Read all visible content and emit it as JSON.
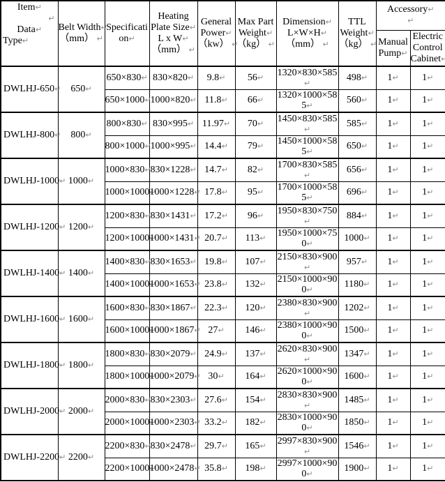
{
  "marks": {
    "line_break": "↵"
  },
  "header": {
    "corner": {
      "lines": [
        {
          "text": "Item",
          "mark": true,
          "align": "c"
        },
        {
          "text": "",
          "mark": true,
          "align": "r"
        },
        {
          "text": "Data",
          "mark": true,
          "align": "c"
        },
        {
          "text": "Type",
          "mark": true,
          "align": "l"
        }
      ]
    },
    "columns": [
      {
        "name": "belt-width",
        "lines": [
          {
            "text": "Belt Width",
            "mark": true
          },
          {
            "text": "（mm） ",
            "mark": true
          }
        ]
      },
      {
        "name": "specification",
        "lines": [
          {
            "text": "Specificati"
          },
          {
            "text": "on",
            "mark": true
          }
        ]
      },
      {
        "name": "heating-plate-size",
        "lines": [
          {
            "text": "Heating"
          },
          {
            "text": "Plate Size",
            "mark": true
          },
          {
            "text": "L x W",
            "mark": true
          },
          {
            "text": "（mm） ",
            "mark": true
          }
        ]
      },
      {
        "name": "general-power",
        "lines": [
          {
            "text": "General"
          },
          {
            "text": "Power",
            "mark": true
          },
          {
            "text": "（kw） ",
            "mark": true
          }
        ]
      },
      {
        "name": "max-part-weight",
        "lines": [
          {
            "text": "Max Part"
          },
          {
            "text": "Weight",
            "mark": true
          },
          {
            "text": "（kg） ",
            "mark": true
          }
        ]
      },
      {
        "name": "dimension",
        "lines": [
          {
            "text": "Dimension",
            "mark": true
          },
          {
            "text": "L×W×H",
            "mark": true
          },
          {
            "text": "（mm） ",
            "mark": true
          }
        ]
      },
      {
        "name": "ttl-weight",
        "lines": [
          {
            "text": "TTL"
          },
          {
            "text": "Weight",
            "mark": true
          },
          {
            "text": "（kg） ",
            "mark": true
          }
        ]
      }
    ],
    "accessory": {
      "lines": [
        {
          "text": "Accessory",
          "mark": true
        },
        {
          "text": "",
          "mark": true,
          "align": "c"
        }
      ]
    },
    "accessory_sub": [
      {
        "name": "manual-pump",
        "lines": [
          {
            "text": "Manual"
          },
          {
            "text": "Pump",
            "mark": true
          }
        ]
      },
      {
        "name": "electric-control-cabinet",
        "lines": [
          {
            "text": "Electric"
          },
          {
            "text": "Control"
          },
          {
            "text": "Cabinet",
            "mark": true
          }
        ]
      }
    ]
  },
  "groups": [
    {
      "model": "DWLHJ-650",
      "belt_width": "650",
      "variants": [
        {
          "spec": "650×830",
          "plate": "830×820",
          "power": "9.8",
          "max_weight": "56",
          "dimension": "1320×830×585",
          "ttl": "498",
          "manual_pump": "1",
          "electric_cabinet": "1"
        },
        {
          "spec": "650×1000",
          "plate": "1000×820",
          "power": "11.8",
          "max_weight": "66",
          "dimension": "1320×1000×585",
          "ttl": "560",
          "manual_pump": "1",
          "electric_cabinet": "1"
        }
      ]
    },
    {
      "model": "DWLHJ-800",
      "belt_width": "800",
      "variants": [
        {
          "spec": "800×830",
          "plate": "830×995",
          "power": "11.97",
          "max_weight": "70",
          "dimension": "1450×830×585",
          "ttl": "585",
          "manual_pump": "1",
          "electric_cabinet": "1"
        },
        {
          "spec": "800×1000",
          "plate": "1000×995",
          "power": "14.4",
          "max_weight": "79",
          "dimension": "1450×1000×585",
          "ttl": "650",
          "manual_pump": "1",
          "electric_cabinet": "1"
        }
      ]
    },
    {
      "model": "DWLHJ-1000",
      "belt_width": "1000",
      "variants": [
        {
          "spec": "1000×830",
          "plate": "830×1228",
          "power": "14.7",
          "max_weight": "82",
          "dimension": "1700×830×585",
          "ttl": "656",
          "manual_pump": "1",
          "electric_cabinet": "1"
        },
        {
          "spec": "1000×1000",
          "plate": "1000×1228",
          "power": "17.8",
          "max_weight": "95",
          "dimension": "1700×1000×585",
          "ttl": "696",
          "manual_pump": "1",
          "electric_cabinet": "1"
        }
      ]
    },
    {
      "model": "DWLHJ-1200",
      "belt_width": "1200",
      "variants": [
        {
          "spec": "1200×830",
          "plate": "830×1431",
          "power": "17.2",
          "max_weight": "96",
          "dimension": "1950×830×750",
          "ttl": "884",
          "manual_pump": "1",
          "electric_cabinet": "1"
        },
        {
          "spec": "1200×1000",
          "plate": "1000×1431",
          "power": "20.7",
          "max_weight": "113",
          "dimension": "1950×1000×750",
          "ttl": "1000",
          "manual_pump": "1",
          "electric_cabinet": "1"
        }
      ]
    },
    {
      "model": "DWLHJ-1400",
      "belt_width": "1400",
      "variants": [
        {
          "spec": "1400×830",
          "plate": "830×1653",
          "power": "19.8",
          "max_weight": "107",
          "dimension": "2150×830×900",
          "ttl": "957",
          "manual_pump": "1",
          "electric_cabinet": "1"
        },
        {
          "spec": "1400×1000",
          "plate": "1000×1653",
          "power": "23.8",
          "max_weight": "132",
          "dimension": "2150×1000×900",
          "ttl": "1180",
          "manual_pump": "1",
          "electric_cabinet": "1"
        }
      ]
    },
    {
      "model": "DWLHJ-1600",
      "belt_width": "1600",
      "variants": [
        {
          "spec": "1600×830",
          "plate": "830×1867",
          "power": "22.3",
          "max_weight": "120",
          "dimension": "2380×830×900",
          "ttl": "1202",
          "manual_pump": "1",
          "electric_cabinet": "1"
        },
        {
          "spec": "1600×1000",
          "plate": "1000×1867",
          "power": "27",
          "max_weight": "146",
          "dimension": "2380×1000×900",
          "ttl": "1500",
          "manual_pump": "1",
          "electric_cabinet": "1"
        }
      ]
    },
    {
      "model": "DWLHJ-1800",
      "belt_width": "1800",
      "variants": [
        {
          "spec": "1800×830",
          "plate": "830×2079",
          "power": "24.9",
          "max_weight": "137",
          "dimension": "2620×830×900",
          "ttl": "1347",
          "manual_pump": "1",
          "electric_cabinet": "1"
        },
        {
          "spec": "1800×1000",
          "plate": "1000×2079",
          "power": "30",
          "max_weight": "164",
          "dimension": "2620×1000×900",
          "ttl": "1600",
          "manual_pump": "1",
          "electric_cabinet": "1"
        }
      ]
    },
    {
      "model": "DWLHJ-2000",
      "belt_width": "2000",
      "variants": [
        {
          "spec": "2000×830",
          "plate": "830×2303",
          "power": "27.6",
          "max_weight": "154",
          "dimension": "2830×830×900",
          "ttl": "1485",
          "manual_pump": "1",
          "electric_cabinet": "1"
        },
        {
          "spec": "2000×1000",
          "plate": "1000×2303",
          "power": "33.2",
          "max_weight": "182",
          "dimension": "2830×1000×900",
          "ttl": "1850",
          "manual_pump": "1",
          "electric_cabinet": "1"
        }
      ]
    },
    {
      "model": "DWLHJ-2200",
      "belt_width": "2200",
      "variants": [
        {
          "spec": "2200×830",
          "plate": "830×2478",
          "power": "29.7",
          "max_weight": "165",
          "dimension": "2997×830×900",
          "ttl": "1546",
          "manual_pump": "1",
          "electric_cabinet": "1"
        },
        {
          "spec": "2200×1000",
          "plate": "1000×2478",
          "power": "35.8",
          "max_weight": "198",
          "dimension": "2997×1000×900",
          "ttl": "1900",
          "manual_pump": "1",
          "electric_cabinet": "1"
        }
      ]
    }
  ]
}
